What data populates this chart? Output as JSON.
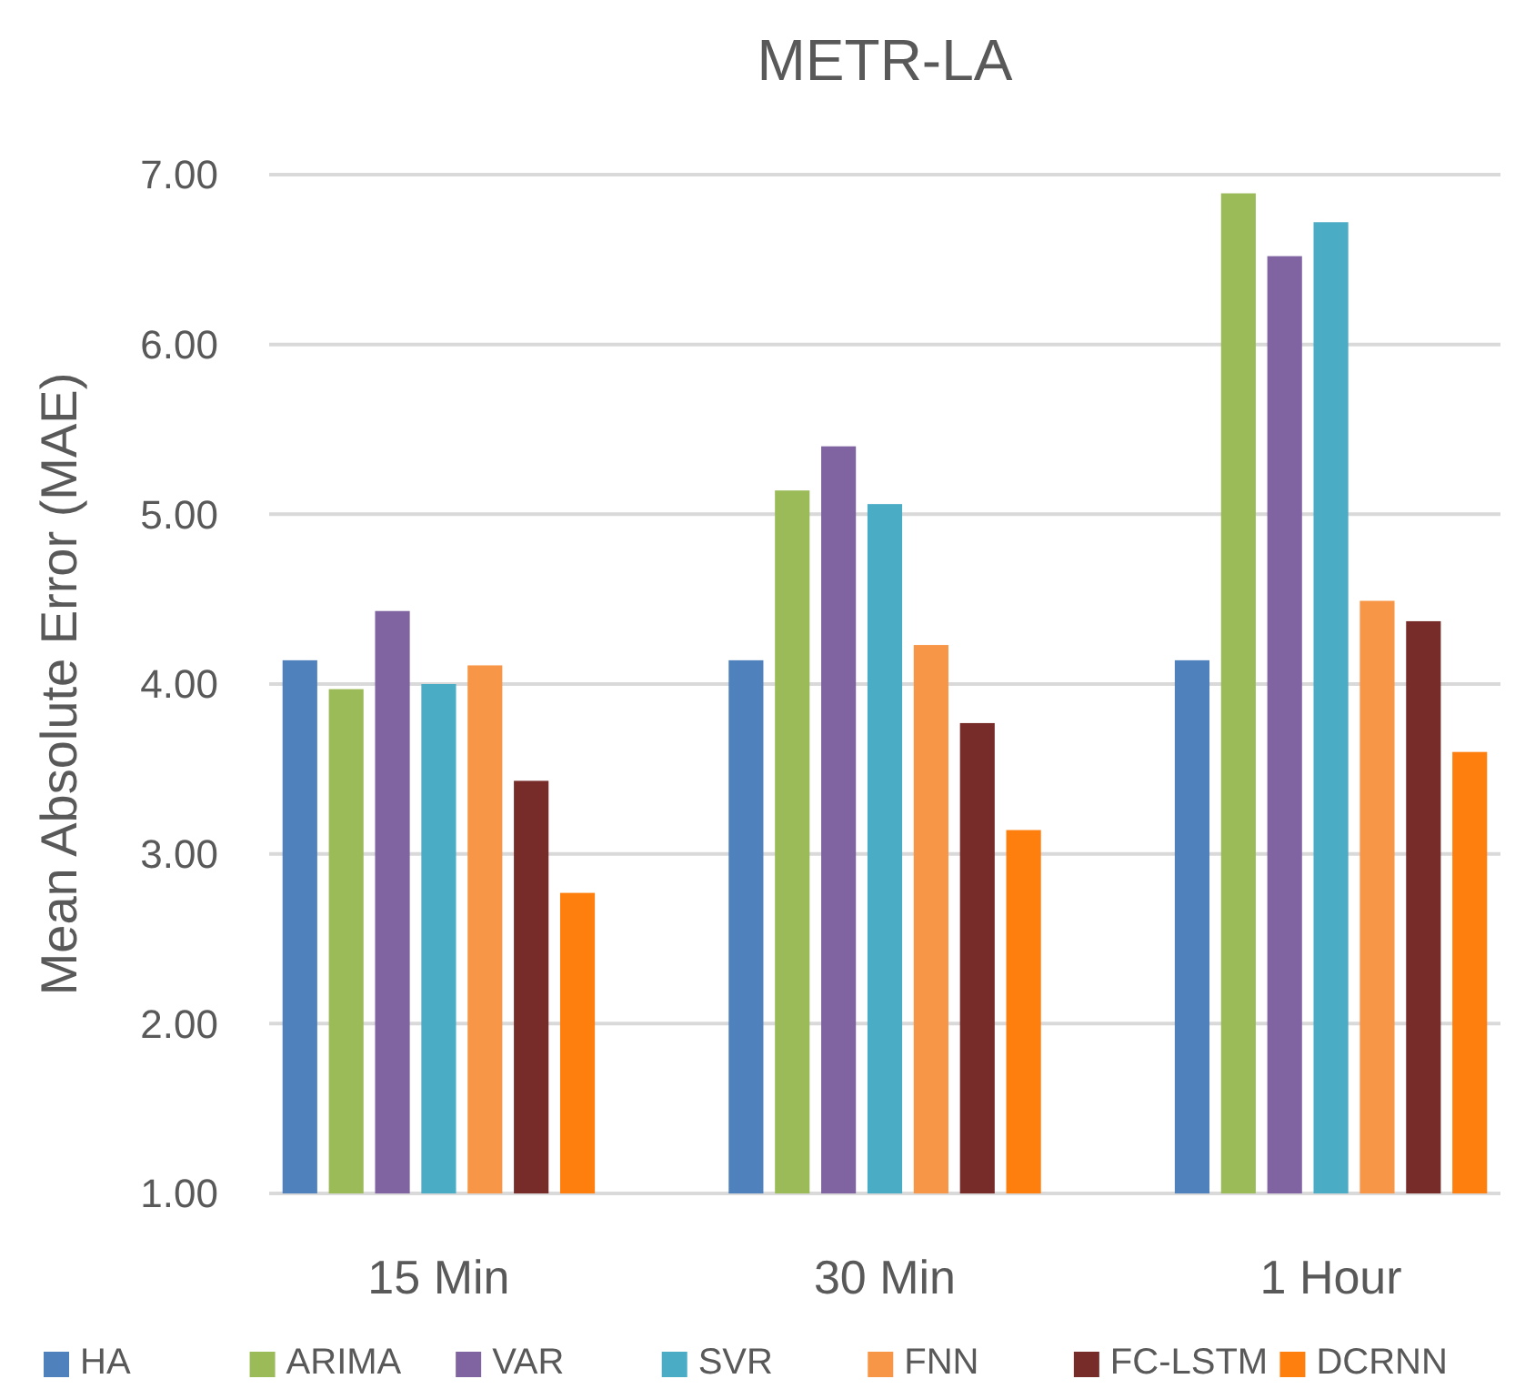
{
  "chart_data": {
    "type": "bar",
    "title": "METR-LA",
    "ylabel": "Mean Absolute Error (MAE)",
    "categories": [
      "15 Min",
      "30 Min",
      "1 Hour"
    ],
    "series": [
      {
        "name": "HA",
        "color": "#4f81bd",
        "values": [
          4.14,
          4.14,
          4.14
        ]
      },
      {
        "name": "ARIMA",
        "color": "#9bbb59",
        "values": [
          3.97,
          5.14,
          6.89
        ]
      },
      {
        "name": "VAR",
        "color": "#8064a2",
        "values": [
          4.43,
          5.4,
          6.52
        ]
      },
      {
        "name": "SVR",
        "color": "#4bacc6",
        "values": [
          4.0,
          5.06,
          6.72
        ]
      },
      {
        "name": "FNN",
        "color": "#f79646",
        "values": [
          4.11,
          4.23,
          4.49
        ]
      },
      {
        "name": "FC-LSTM",
        "color": "#772c2a",
        "values": [
          3.43,
          3.77,
          4.37
        ]
      },
      {
        "name": "DCRNN",
        "color": "#ff7f0e",
        "values": [
          2.77,
          3.14,
          3.6
        ]
      }
    ],
    "ylim": [
      1,
      7
    ],
    "yticks": [
      {
        "value": 1,
        "label": "1.00"
      },
      {
        "value": 2,
        "label": "2.00"
      },
      {
        "value": 3,
        "label": "3.00"
      },
      {
        "value": 4,
        "label": "4.00"
      },
      {
        "value": 5,
        "label": "5.00"
      },
      {
        "value": 6,
        "label": "6.00"
      },
      {
        "value": 7,
        "label": "7.00"
      }
    ],
    "grid": "y",
    "legend": "bottom"
  }
}
